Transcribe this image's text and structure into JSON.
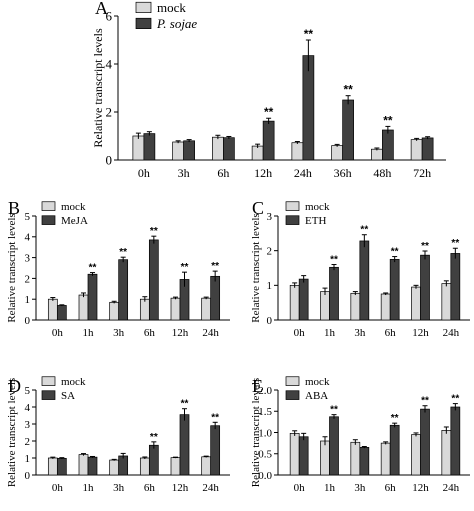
{
  "chart_data": [
    {
      "panel": "A",
      "type": "bar",
      "ylabel": "Relative transcript levels",
      "ylim": [
        0,
        6
      ],
      "yticks": [
        0,
        2,
        4,
        6
      ],
      "categories": [
        "0h",
        "3h",
        "6h",
        "12h",
        "24h",
        "36h",
        "48h",
        "72h"
      ],
      "series": [
        {
          "name": "mock",
          "color": "#d9d9d9",
          "values": [
            1.0,
            0.75,
            0.95,
            0.58,
            0.72,
            0.6,
            0.45,
            0.85
          ],
          "errors": [
            0.12,
            0.05,
            0.08,
            0.08,
            0.05,
            0.05,
            0.05,
            0.05
          ]
        },
        {
          "name": "P. sojae",
          "italic": true,
          "color": "#404040",
          "values": [
            1.1,
            0.8,
            0.93,
            1.62,
            4.35,
            2.5,
            1.25,
            0.92
          ],
          "errors": [
            0.08,
            0.05,
            0.05,
            0.12,
            0.65,
            0.18,
            0.15,
            0.05
          ]
        }
      ],
      "significance": [
        "",
        "",
        "",
        "**",
        "**",
        "**",
        "**",
        ""
      ]
    },
    {
      "panel": "B",
      "type": "bar",
      "ylabel": "Relative transcript levels",
      "ylim": [
        0,
        5
      ],
      "yticks": [
        0,
        1,
        2,
        3,
        4,
        5
      ],
      "categories": [
        "0h",
        "1h",
        "3h",
        "6h",
        "12h",
        "24h"
      ],
      "series": [
        {
          "name": "mock",
          "color": "#d9d9d9",
          "values": [
            1.0,
            1.2,
            0.85,
            1.0,
            1.05,
            1.05
          ],
          "errors": [
            0.08,
            0.1,
            0.05,
            0.12,
            0.05,
            0.05
          ]
        },
        {
          "name": "MeJA",
          "color": "#404040",
          "values": [
            0.7,
            2.2,
            2.9,
            3.85,
            1.95,
            2.1
          ],
          "errors": [
            0.03,
            0.08,
            0.12,
            0.18,
            0.35,
            0.25
          ]
        }
      ],
      "significance": [
        "",
        "**",
        "**",
        "**",
        "**",
        "**"
      ]
    },
    {
      "panel": "C",
      "type": "bar",
      "ylabel": "Relative transcript levels",
      "ylim": [
        0,
        3
      ],
      "yticks": [
        0,
        1,
        2,
        3
      ],
      "categories": [
        "0h",
        "1h",
        "3h",
        "6h",
        "12h",
        "24h"
      ],
      "series": [
        {
          "name": "mock",
          "color": "#d9d9d9",
          "values": [
            1.0,
            0.82,
            0.77,
            0.75,
            0.95,
            1.05
          ],
          "errors": [
            0.07,
            0.1,
            0.05,
            0.03,
            0.05,
            0.08
          ]
        },
        {
          "name": "ETH",
          "color": "#404040",
          "values": [
            1.18,
            1.52,
            2.28,
            1.75,
            1.87,
            1.92
          ],
          "errors": [
            0.1,
            0.08,
            0.18,
            0.08,
            0.12,
            0.15
          ]
        }
      ],
      "significance": [
        "",
        "**",
        "**",
        "**",
        "**",
        "**"
      ]
    },
    {
      "panel": "D",
      "type": "bar",
      "ylabel": "Relative transcript levels",
      "ylim": [
        0,
        5
      ],
      "yticks": [
        0,
        1,
        2,
        3,
        4,
        5
      ],
      "categories": [
        "0h",
        "1h",
        "3h",
        "6h",
        "12h",
        "24h"
      ],
      "series": [
        {
          "name": "mock",
          "color": "#d9d9d9",
          "values": [
            1.0,
            1.2,
            0.88,
            1.0,
            1.02,
            1.07
          ],
          "errors": [
            0.05,
            0.06,
            0.04,
            0.06,
            0.03,
            0.04
          ]
        },
        {
          "name": "SA",
          "color": "#404040",
          "values": [
            0.98,
            1.05,
            1.12,
            1.75,
            3.55,
            2.9
          ],
          "errors": [
            0.04,
            0.04,
            0.15,
            0.2,
            0.35,
            0.2
          ]
        }
      ],
      "significance": [
        "",
        "",
        "",
        "**",
        "**",
        "**"
      ]
    },
    {
      "panel": "E",
      "type": "bar",
      "ylabel": "Relative transcript levels",
      "ylim": [
        0,
        2.0
      ],
      "yticks": [
        "0.0",
        "0.5",
        "1.0",
        "1.5",
        "2.0"
      ],
      "categories": [
        "0h",
        "1h",
        "3h",
        "6h",
        "12h",
        "24h"
      ],
      "series": [
        {
          "name": "mock",
          "color": "#d9d9d9",
          "values": [
            0.98,
            0.8,
            0.77,
            0.75,
            0.95,
            1.05
          ],
          "errors": [
            0.06,
            0.1,
            0.06,
            0.03,
            0.04,
            0.08
          ]
        },
        {
          "name": "ABA",
          "color": "#404040",
          "values": [
            0.9,
            1.37,
            0.65,
            1.17,
            1.55,
            1.6
          ],
          "errors": [
            0.08,
            0.05,
            0.02,
            0.05,
            0.08,
            0.08
          ]
        }
      ],
      "significance": [
        "",
        "**",
        "",
        "**",
        "**",
        "**"
      ]
    }
  ]
}
